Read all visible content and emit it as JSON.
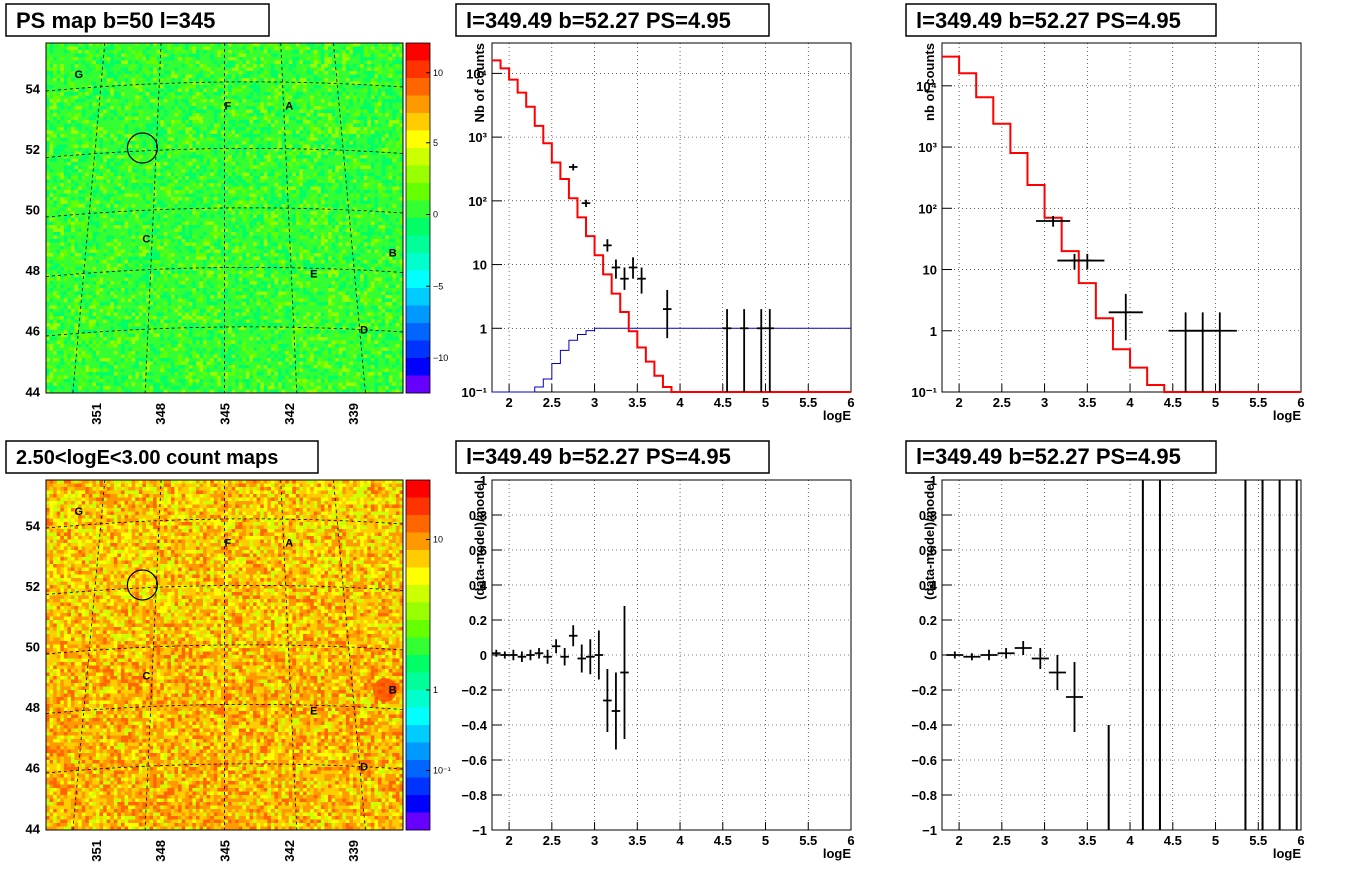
{
  "chart_data": [
    {
      "panel": "ps-map",
      "type": "heatmap",
      "title": "PS map b=50 l=345",
      "x_ticks": [
        "351",
        "348",
        "345",
        "342",
        "339"
      ],
      "y_ticks": [
        "54",
        "52",
        "50",
        "48",
        "46",
        "44"
      ],
      "colorbar_ticks": [
        "10",
        "5",
        "0",
        "−5",
        "−10"
      ],
      "colorbar_colors": [
        "#ff0000",
        "#ff3300",
        "#ff6600",
        "#ff9900",
        "#ffcc00",
        "#ffff00",
        "#ccff00",
        "#99ff00",
        "#66ff00",
        "#33ff33",
        "#00ff66",
        "#00ff99",
        "#00ffcc",
        "#00ffff",
        "#00ccff",
        "#0099ff",
        "#0066ff",
        "#0033ff",
        "#0000ff",
        "#6600ff"
      ],
      "sources": [
        "G",
        "F",
        "A",
        "C",
        "B",
        "E",
        "D"
      ],
      "base_color": "#33ff33"
    },
    {
      "panel": "spectrum-left",
      "type": "line",
      "title": "l=349.49 b=52.27 PS=4.95",
      "xlabel": "logE",
      "ylabel": "Nb of counts",
      "xlim": [
        1.8,
        6
      ],
      "ylim": [
        0.1,
        30000
      ],
      "y_scale": "log",
      "x_ticks": [
        "2",
        "2.5",
        "3",
        "3.5",
        "4",
        "4.5",
        "5",
        "5.5",
        "6"
      ],
      "y_ticks": [
        {
          "v": 0.1,
          "t": "10⁻¹"
        },
        {
          "v": 1,
          "t": "1"
        },
        {
          "v": 10,
          "t": "10"
        },
        {
          "v": 100,
          "t": "10²"
        },
        {
          "v": 1000,
          "t": "10³"
        },
        {
          "v": 10000,
          "t": "10⁴"
        }
      ],
      "model_step": {
        "edges": [
          1.8,
          1.9,
          2.0,
          2.1,
          2.2,
          2.3,
          2.4,
          2.5,
          2.6,
          2.7,
          2.8,
          2.9,
          3.0,
          3.1,
          3.2,
          3.3,
          3.4,
          3.5,
          3.6,
          3.7,
          3.8,
          3.9,
          4.0,
          4.1,
          4.2,
          6.0
        ],
        "values": [
          16000,
          12000,
          8000,
          5000,
          3000,
          1500,
          800,
          400,
          220,
          110,
          55,
          28,
          14,
          7,
          3.5,
          1.8,
          0.9,
          0.5,
          0.3,
          0.18,
          0.12,
          0.1,
          0.1,
          0.1,
          0.1
        ]
      },
      "exposure_step": {
        "edges": [
          1.8,
          2.2,
          2.3,
          2.4,
          2.5,
          2.6,
          2.7,
          2.8,
          2.9,
          3.0,
          3.1,
          3.2,
          6.0
        ],
        "values": [
          0.1,
          0.1,
          0.12,
          0.16,
          0.28,
          0.45,
          0.65,
          0.8,
          0.92,
          1,
          1,
          1
        ]
      },
      "data_points": [
        {
          "x": 2.75,
          "y": 340,
          "ylo": 300,
          "yhi": 380
        },
        {
          "x": 2.9,
          "y": 92,
          "ylo": 80,
          "yhi": 104
        },
        {
          "x": 3.15,
          "y": 20,
          "ylo": 16,
          "yhi": 25
        },
        {
          "x": 3.25,
          "y": 9,
          "ylo": 6,
          "yhi": 12
        },
        {
          "x": 3.35,
          "y": 6,
          "ylo": 4,
          "yhi": 9
        },
        {
          "x": 3.45,
          "y": 9,
          "ylo": 6,
          "yhi": 13
        },
        {
          "x": 3.55,
          "y": 6,
          "ylo": 3.5,
          "yhi": 9
        },
        {
          "x": 3.85,
          "y": 2,
          "ylo": 0.7,
          "yhi": 4
        },
        {
          "x": 4.55,
          "y": 1,
          "ylo": 0.1,
          "yhi": 2
        },
        {
          "x": 4.75,
          "y": 1,
          "ylo": 0.1,
          "yhi": 2
        },
        {
          "x": 4.95,
          "y": 1,
          "ylo": 0.1,
          "yhi": 2
        },
        {
          "x": 5.05,
          "y": 1,
          "ylo": 0.1,
          "yhi": 2
        }
      ],
      "x_half_width": 0.05
    },
    {
      "panel": "spectrum-right",
      "type": "line",
      "title": "l=349.49 b=52.27 PS=4.95",
      "xlabel": "logE",
      "ylabel": "nb of counts",
      "xlim": [
        1.8,
        6
      ],
      "ylim": [
        0.1,
        50000
      ],
      "y_scale": "log",
      "x_ticks": [
        "2",
        "2.5",
        "3",
        "3.5",
        "4",
        "4.5",
        "5",
        "5.5",
        "6"
      ],
      "y_ticks": [
        {
          "v": 0.1,
          "t": "10⁻¹"
        },
        {
          "v": 1,
          "t": "1"
        },
        {
          "v": 10,
          "t": "10"
        },
        {
          "v": 100,
          "t": "10²"
        },
        {
          "v": 1000,
          "t": "10³"
        },
        {
          "v": 10000,
          "t": "10⁴"
        }
      ],
      "model_step": {
        "edges": [
          1.8,
          2.0,
          2.2,
          2.4,
          2.6,
          2.8,
          3.0,
          3.2,
          3.4,
          3.6,
          3.8,
          4.0,
          4.2,
          4.4,
          6.0
        ],
        "values": [
          30000,
          16000,
          6500,
          2400,
          800,
          240,
          70,
          20,
          6,
          1.6,
          0.5,
          0.25,
          0.13,
          0.1
        ]
      },
      "data_points": [
        {
          "x": 3.1,
          "y": 62,
          "ylo": 50,
          "yhi": 75
        },
        {
          "x": 3.35,
          "y": 14,
          "ylo": 10,
          "yhi": 18
        },
        {
          "x": 3.5,
          "y": 14,
          "ylo": 10,
          "yhi": 18
        },
        {
          "x": 3.95,
          "y": 2,
          "ylo": 0.7,
          "yhi": 4
        },
        {
          "x": 4.65,
          "y": 1,
          "ylo": 0.1,
          "yhi": 2
        },
        {
          "x": 4.85,
          "y": 1,
          "ylo": 0.1,
          "yhi": 2
        },
        {
          "x": 5.05,
          "y": 1,
          "ylo": 0.1,
          "yhi": 2
        }
      ],
      "x_half_width": 0.2
    },
    {
      "panel": "count-map",
      "type": "heatmap",
      "title": "2.50<logE<3.00 count maps",
      "x_ticks": [
        "351",
        "348",
        "345",
        "342",
        "339"
      ],
      "y_ticks": [
        "54",
        "52",
        "50",
        "48",
        "46",
        "44"
      ],
      "colorbar_ticks": [
        "10",
        "1",
        "10⁻¹"
      ],
      "colorbar_colors": [
        "#ff0000",
        "#ff3300",
        "#ff6600",
        "#ff9900",
        "#ffcc00",
        "#ffff00",
        "#ccff00",
        "#99ff00",
        "#66ff00",
        "#33ff33",
        "#00ff66",
        "#00ff99",
        "#00ffcc",
        "#00ffff",
        "#00ccff",
        "#0099ff",
        "#0066ff",
        "#0033ff",
        "#0000ff",
        "#6600ff"
      ],
      "sources": [
        "G",
        "F",
        "A",
        "C",
        "B",
        "E",
        "D"
      ],
      "base_color": "#ffcc00"
    },
    {
      "panel": "residual-left",
      "type": "scatter",
      "title": "l=349.49 b=52.27 PS=4.95",
      "xlabel": "logE",
      "ylabel": "(data-model)/model",
      "xlim": [
        1.8,
        6
      ],
      "ylim": [
        -1,
        1
      ],
      "x_ticks": [
        "2",
        "2.5",
        "3",
        "3.5",
        "4",
        "4.5",
        "5",
        "5.5",
        "6"
      ],
      "y_ticks": [
        "1",
        "0.8",
        "0.6",
        "0.4",
        "0.2",
        "0",
        "−0.2",
        "−0.4",
        "−0.6",
        "−0.8",
        "−1"
      ],
      "data_points": [
        {
          "x": 1.85,
          "y": 0.01,
          "e": 0.02
        },
        {
          "x": 1.95,
          "y": 0.0,
          "e": 0.02
        },
        {
          "x": 2.05,
          "y": 0.0,
          "e": 0.03
        },
        {
          "x": 2.15,
          "y": -0.01,
          "e": 0.03
        },
        {
          "x": 2.25,
          "y": 0.0,
          "e": 0.03
        },
        {
          "x": 2.35,
          "y": 0.01,
          "e": 0.03
        },
        {
          "x": 2.45,
          "y": -0.01,
          "e": 0.04
        },
        {
          "x": 2.55,
          "y": 0.05,
          "e": 0.04
        },
        {
          "x": 2.65,
          "y": -0.01,
          "e": 0.05
        },
        {
          "x": 2.75,
          "y": 0.11,
          "e": 0.06
        },
        {
          "x": 2.85,
          "y": -0.02,
          "e": 0.08
        },
        {
          "x": 2.95,
          "y": -0.01,
          "e": 0.1
        },
        {
          "x": 3.05,
          "y": 0.0,
          "e": 0.14
        },
        {
          "x": 3.15,
          "y": -0.26,
          "e": 0.18
        },
        {
          "x": 3.25,
          "y": -0.32,
          "e": 0.22
        },
        {
          "x": 3.35,
          "y": -0.1,
          "e": 0.38
        }
      ],
      "x_half_width": 0.05
    },
    {
      "panel": "residual-right",
      "type": "scatter",
      "title": "l=349.49 b=52.27 PS=4.95",
      "xlabel": "logE",
      "ylabel": "(data-model)/model",
      "xlim": [
        1.8,
        6
      ],
      "ylim": [
        -1,
        1
      ],
      "x_ticks": [
        "2",
        "2.5",
        "3",
        "3.5",
        "4",
        "4.5",
        "5",
        "5.5",
        "6"
      ],
      "y_ticks": [
        "1",
        "0.8",
        "0.6",
        "0.4",
        "0.2",
        "0",
        "−0.2",
        "−0.4",
        "−0.6",
        "−0.8",
        "−1"
      ],
      "data_points": [
        {
          "x": 1.95,
          "y": 0.0,
          "e": 0.02
        },
        {
          "x": 2.15,
          "y": -0.01,
          "e": 0.02
        },
        {
          "x": 2.35,
          "y": 0.0,
          "e": 0.03
        },
        {
          "x": 2.55,
          "y": 0.01,
          "e": 0.03
        },
        {
          "x": 2.75,
          "y": 0.04,
          "e": 0.04
        },
        {
          "x": 2.95,
          "y": -0.02,
          "e": 0.06
        },
        {
          "x": 3.15,
          "y": -0.1,
          "e": 0.1
        },
        {
          "x": 3.35,
          "y": -0.24,
          "e": 0.2
        }
      ],
      "x_half_width": 0.1,
      "vertical_bars": [
        {
          "x": 3.75,
          "y0": -1,
          "y1": -0.4
        },
        {
          "x": 4.15,
          "y0": -1,
          "y1": 1
        },
        {
          "x": 4.35,
          "y0": -1,
          "y1": 1
        },
        {
          "x": 5.35,
          "y0": -1,
          "y1": 1
        },
        {
          "x": 5.55,
          "y0": -1,
          "y1": 1
        },
        {
          "x": 5.75,
          "y0": -1,
          "y1": 1
        },
        {
          "x": 5.95,
          "y0": -1,
          "y1": 1
        }
      ]
    }
  ]
}
